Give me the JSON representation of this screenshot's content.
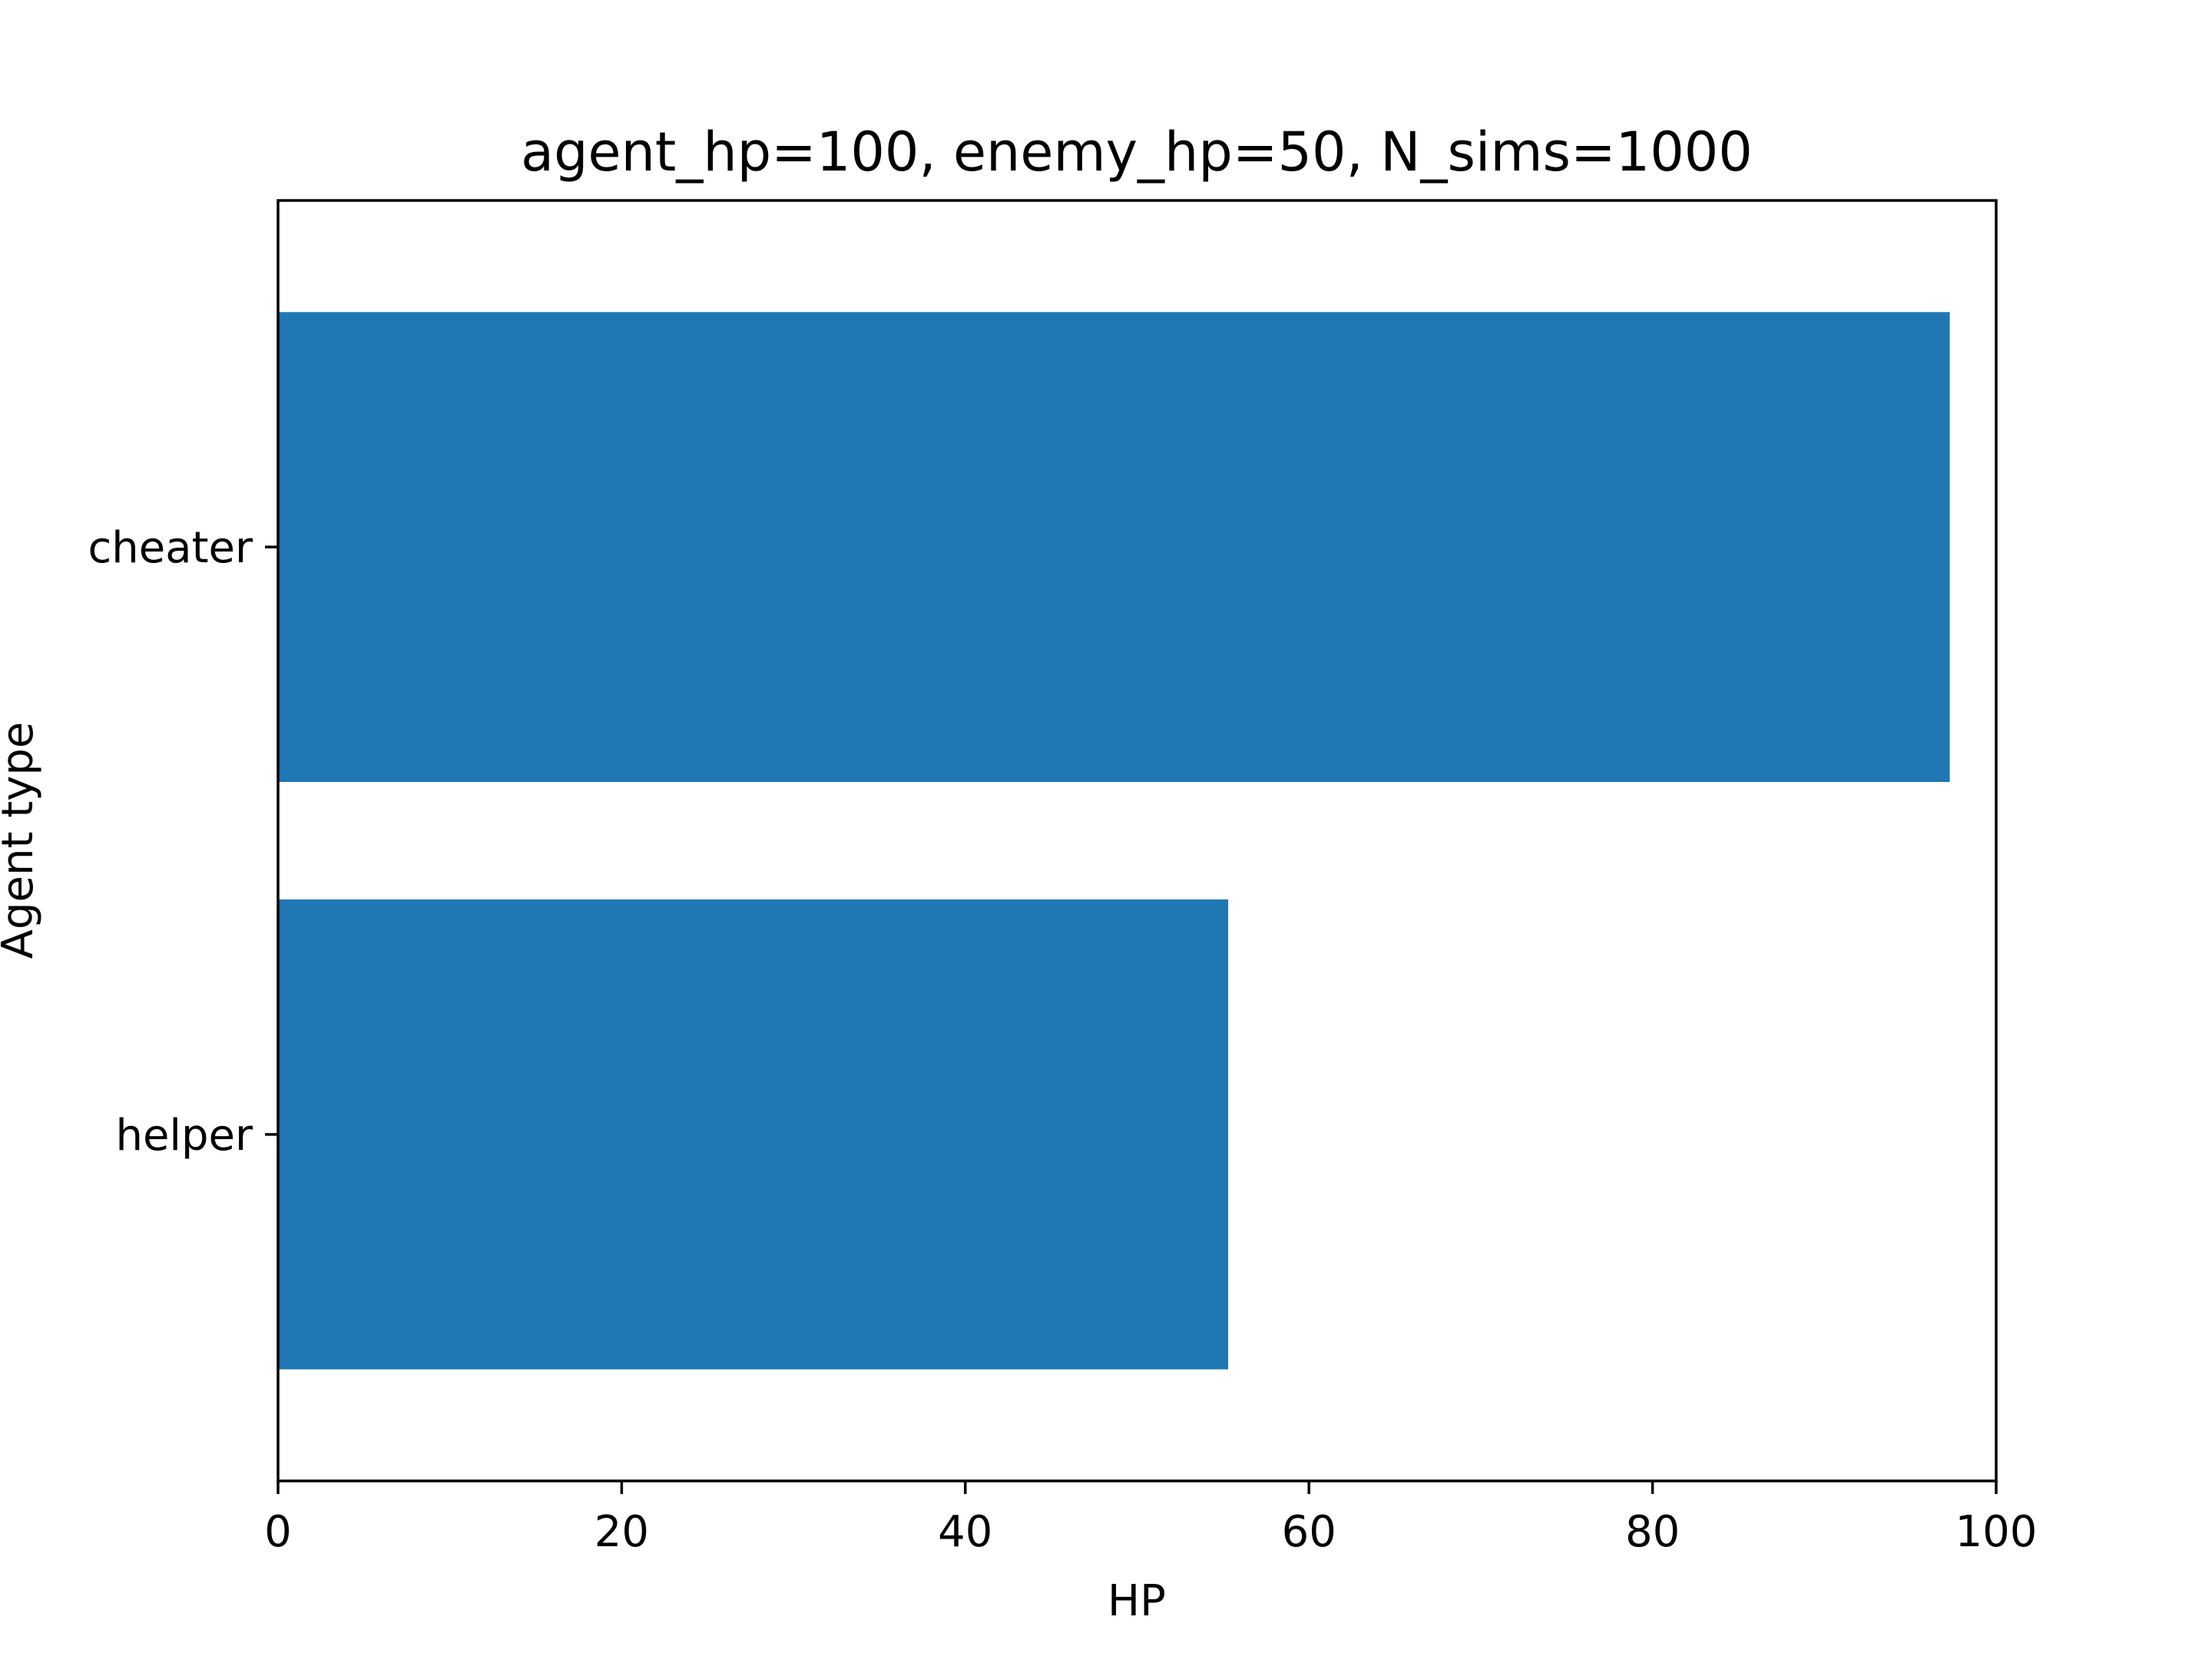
{
  "chart_data": {
    "type": "bar",
    "orientation": "horizontal",
    "title": "agent_hp=100, enemy_hp=50, N_sims=1000",
    "xlabel": "HP",
    "ylabel": "Agent type",
    "categories": [
      "cheater",
      "helper"
    ],
    "values": [
      97.3,
      55.3
    ],
    "xlim": [
      0,
      100
    ],
    "xticks": [
      0,
      20,
      40,
      60,
      80,
      100
    ],
    "xtick_labels": [
      "0",
      "20",
      "40",
      "60",
      "80",
      "100"
    ],
    "grid": false,
    "bar_color": "#1f77b4"
  }
}
